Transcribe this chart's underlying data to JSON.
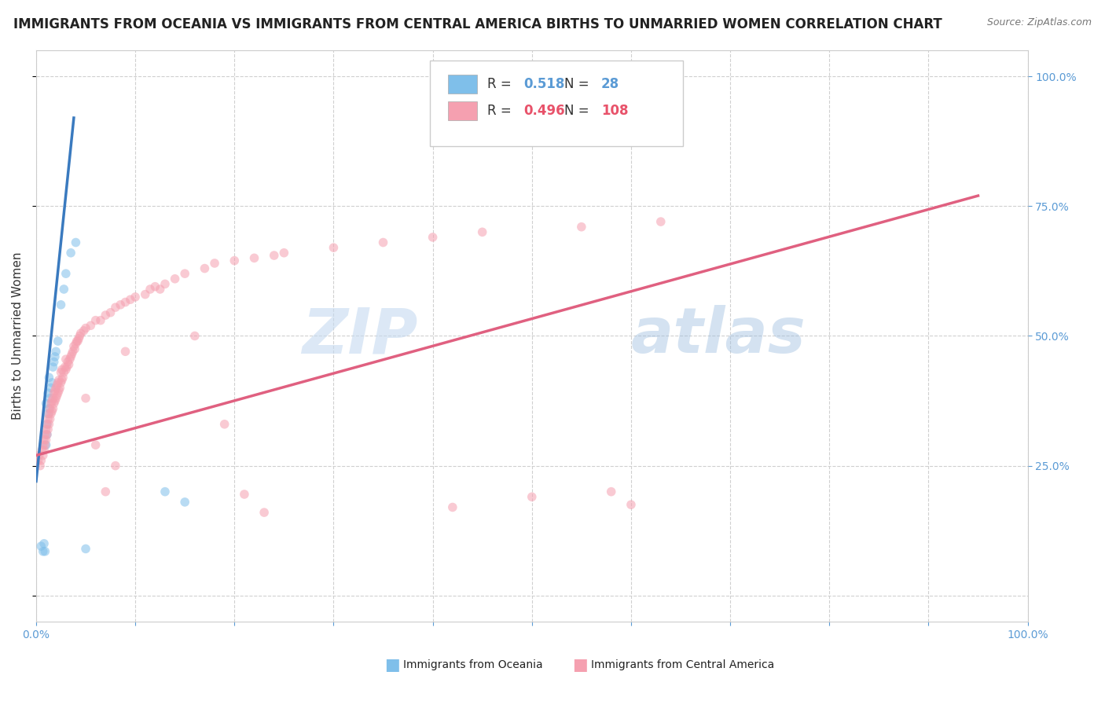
{
  "title": "IMMIGRANTS FROM OCEANIA VS IMMIGRANTS FROM CENTRAL AMERICA BIRTHS TO UNMARRIED WOMEN CORRELATION CHART",
  "source": "Source: ZipAtlas.com",
  "ylabel": "Births to Unmarried Women",
  "watermark": "ZIPatlas",
  "legend": {
    "oceania": {
      "R": 0.518,
      "N": 28,
      "color": "#7fbfea",
      "line_color": "#3a7abf"
    },
    "central_america": {
      "R": 0.496,
      "N": 108,
      "color": "#f5a0b0",
      "line_color": "#e06080"
    }
  },
  "oceania_scatter": [
    [
      0.005,
      0.095
    ],
    [
      0.007,
      0.085
    ],
    [
      0.008,
      0.1
    ],
    [
      0.009,
      0.085
    ],
    [
      0.01,
      0.29
    ],
    [
      0.01,
      0.37
    ],
    [
      0.011,
      0.31
    ],
    [
      0.011,
      0.33
    ],
    [
      0.012,
      0.35
    ],
    [
      0.012,
      0.39
    ],
    [
      0.013,
      0.36
    ],
    [
      0.013,
      0.42
    ],
    [
      0.014,
      0.38
    ],
    [
      0.015,
      0.4
    ],
    [
      0.016,
      0.41
    ],
    [
      0.017,
      0.44
    ],
    [
      0.018,
      0.45
    ],
    [
      0.019,
      0.46
    ],
    [
      0.02,
      0.47
    ],
    [
      0.022,
      0.49
    ],
    [
      0.025,
      0.56
    ],
    [
      0.028,
      0.59
    ],
    [
      0.03,
      0.62
    ],
    [
      0.035,
      0.66
    ],
    [
      0.04,
      0.68
    ],
    [
      0.05,
      0.09
    ],
    [
      0.13,
      0.2
    ],
    [
      0.15,
      0.18
    ]
  ],
  "central_america_scatter": [
    [
      0.002,
      0.26
    ],
    [
      0.003,
      0.27
    ],
    [
      0.004,
      0.25
    ],
    [
      0.005,
      0.26
    ],
    [
      0.006,
      0.28
    ],
    [
      0.007,
      0.27
    ],
    [
      0.007,
      0.29
    ],
    [
      0.008,
      0.28
    ],
    [
      0.008,
      0.3
    ],
    [
      0.009,
      0.29
    ],
    [
      0.009,
      0.31
    ],
    [
      0.01,
      0.3
    ],
    [
      0.01,
      0.32
    ],
    [
      0.011,
      0.31
    ],
    [
      0.011,
      0.33
    ],
    [
      0.012,
      0.32
    ],
    [
      0.012,
      0.34
    ],
    [
      0.013,
      0.33
    ],
    [
      0.013,
      0.35
    ],
    [
      0.014,
      0.34
    ],
    [
      0.014,
      0.36
    ],
    [
      0.015,
      0.35
    ],
    [
      0.015,
      0.37
    ],
    [
      0.016,
      0.355
    ],
    [
      0.016,
      0.375
    ],
    [
      0.017,
      0.36
    ],
    [
      0.017,
      0.38
    ],
    [
      0.018,
      0.37
    ],
    [
      0.018,
      0.39
    ],
    [
      0.019,
      0.375
    ],
    [
      0.019,
      0.395
    ],
    [
      0.02,
      0.38
    ],
    [
      0.02,
      0.4
    ],
    [
      0.021,
      0.385
    ],
    [
      0.021,
      0.405
    ],
    [
      0.022,
      0.39
    ],
    [
      0.022,
      0.41
    ],
    [
      0.023,
      0.395
    ],
    [
      0.023,
      0.415
    ],
    [
      0.024,
      0.4
    ],
    [
      0.025,
      0.41
    ],
    [
      0.025,
      0.43
    ],
    [
      0.026,
      0.415
    ],
    [
      0.026,
      0.435
    ],
    [
      0.027,
      0.42
    ],
    [
      0.028,
      0.43
    ],
    [
      0.029,
      0.44
    ],
    [
      0.03,
      0.435
    ],
    [
      0.03,
      0.455
    ],
    [
      0.031,
      0.44
    ],
    [
      0.032,
      0.45
    ],
    [
      0.033,
      0.445
    ],
    [
      0.034,
      0.455
    ],
    [
      0.035,
      0.46
    ],
    [
      0.036,
      0.465
    ],
    [
      0.037,
      0.47
    ],
    [
      0.038,
      0.48
    ],
    [
      0.039,
      0.475
    ],
    [
      0.04,
      0.485
    ],
    [
      0.041,
      0.49
    ],
    [
      0.042,
      0.49
    ],
    [
      0.043,
      0.495
    ],
    [
      0.044,
      0.5
    ],
    [
      0.045,
      0.505
    ],
    [
      0.048,
      0.51
    ],
    [
      0.05,
      0.515
    ],
    [
      0.05,
      0.38
    ],
    [
      0.055,
      0.52
    ],
    [
      0.06,
      0.53
    ],
    [
      0.06,
      0.29
    ],
    [
      0.065,
      0.53
    ],
    [
      0.07,
      0.54
    ],
    [
      0.07,
      0.2
    ],
    [
      0.075,
      0.545
    ],
    [
      0.08,
      0.25
    ],
    [
      0.08,
      0.555
    ],
    [
      0.085,
      0.56
    ],
    [
      0.09,
      0.565
    ],
    [
      0.09,
      0.47
    ],
    [
      0.095,
      0.57
    ],
    [
      0.1,
      0.575
    ],
    [
      0.11,
      0.58
    ],
    [
      0.115,
      0.59
    ],
    [
      0.12,
      0.595
    ],
    [
      0.125,
      0.59
    ],
    [
      0.13,
      0.6
    ],
    [
      0.14,
      0.61
    ],
    [
      0.15,
      0.62
    ],
    [
      0.16,
      0.5
    ],
    [
      0.17,
      0.63
    ],
    [
      0.18,
      0.64
    ],
    [
      0.19,
      0.33
    ],
    [
      0.2,
      0.645
    ],
    [
      0.21,
      0.195
    ],
    [
      0.22,
      0.65
    ],
    [
      0.23,
      0.16
    ],
    [
      0.24,
      0.655
    ],
    [
      0.25,
      0.66
    ],
    [
      0.3,
      0.67
    ],
    [
      0.35,
      0.68
    ],
    [
      0.4,
      0.69
    ],
    [
      0.42,
      0.17
    ],
    [
      0.45,
      0.7
    ],
    [
      0.5,
      0.19
    ],
    [
      0.55,
      0.71
    ],
    [
      0.58,
      0.2
    ],
    [
      0.6,
      0.175
    ],
    [
      0.63,
      0.72
    ]
  ],
  "oceania_line_points": [
    [
      0.0,
      0.22
    ],
    [
      0.038,
      0.92
    ]
  ],
  "central_america_line_points": [
    [
      0.0,
      0.27
    ],
    [
      0.95,
      0.77
    ]
  ],
  "xlim": [
    0.0,
    1.0
  ],
  "ylim": [
    -0.05,
    1.05
  ],
  "background_color": "#ffffff",
  "grid_color": "#d0d0d0",
  "title_fontsize": 12,
  "axis_label_fontsize": 11,
  "tick_label_fontsize": 10,
  "watermark_color": "#c5daf0",
  "watermark_color2": "#a0c0e0",
  "dot_size": 70,
  "dot_alpha": 0.55
}
